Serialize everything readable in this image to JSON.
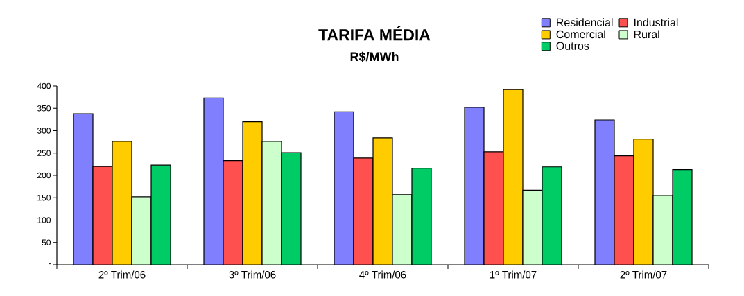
{
  "chart_data": {
    "type": "bar",
    "title": "TARIFA MÉDIA",
    "subtitle": "R$/MWh",
    "categories": [
      "2º Trim/06",
      "3º Trim/06",
      "4º Trim/06",
      "1º Trim/07",
      "2º Trim/07"
    ],
    "series": [
      {
        "name": "Residencial",
        "color": "#8080ff",
        "values": [
          338,
          373,
          342,
          352,
          324
        ]
      },
      {
        "name": "Industrial",
        "color": "#ff5050",
        "values": [
          220,
          233,
          239,
          253,
          244
        ]
      },
      {
        "name": "Comercial",
        "color": "#ffcc00",
        "values": [
          276,
          320,
          284,
          392,
          281
        ]
      },
      {
        "name": "Rural",
        "color": "#ccffcc",
        "values": [
          152,
          276,
          157,
          167,
          155
        ]
      },
      {
        "name": "Outros",
        "color": "#00cc66",
        "values": [
          223,
          251,
          216,
          219,
          213
        ]
      }
    ],
    "ylim": [
      0,
      400
    ],
    "yticks": [
      {
        "value": 0,
        "label": "-"
      },
      50,
      100,
      150,
      200,
      250,
      300,
      350,
      400
    ],
    "grid": false,
    "legend": "top right"
  }
}
